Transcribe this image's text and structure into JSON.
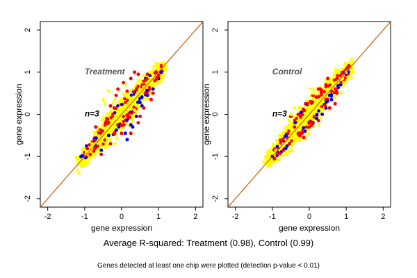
{
  "chart_data": [
    {
      "type": "scatter",
      "title": "Treatment",
      "annotation": "n=3",
      "xlabel": "gene expression",
      "ylabel": "gene expression",
      "xlim": [
        -2.2,
        2.2
      ],
      "ylim": [
        -2.2,
        2.2
      ],
      "xticks": [
        -2,
        -1,
        0,
        1,
        2
      ],
      "yticks": [
        -2,
        -1,
        0,
        1,
        2
      ],
      "reference_line": {
        "slope": 1,
        "intercept": 0,
        "color": "#cc5500"
      },
      "grid": false,
      "series": [
        {
          "color": "#0000ff",
          "points": [
            [
              -1.05,
              -0.98
            ],
            [
              -0.95,
              -0.75
            ],
            [
              -0.7,
              -0.75
            ],
            [
              -0.35,
              -0.5
            ],
            [
              0.1,
              -0.45
            ],
            [
              0.15,
              -0.6
            ],
            [
              0.25,
              -0.25
            ],
            [
              0.4,
              -0.05
            ],
            [
              0.55,
              0.2
            ],
            [
              0.7,
              0.45
            ],
            [
              0.85,
              0.6
            ],
            [
              1.0,
              0.85
            ],
            [
              -1.1,
              -1.0
            ],
            [
              0.3,
              -0.3
            ],
            [
              -0.55,
              -0.85
            ],
            [
              0.65,
              0.85
            ]
          ]
        },
        {
          "color": "#ff0000",
          "points": [
            [
              -0.85,
              -0.95
            ],
            [
              -0.55,
              -0.95
            ],
            [
              -0.3,
              -0.7
            ],
            [
              -0.4,
              -0.1
            ],
            [
              -0.2,
              0.15
            ],
            [
              -0.1,
              0.6
            ],
            [
              0.05,
              0.75
            ],
            [
              0.25,
              0.85
            ],
            [
              0.45,
              0.95
            ],
            [
              0.55,
              0.65
            ],
            [
              0.6,
              0.15
            ],
            [
              0.45,
              -0.2
            ],
            [
              0.25,
              -0.45
            ],
            [
              0.0,
              -0.45
            ],
            [
              -0.1,
              -0.25
            ],
            [
              0.15,
              0.55
            ],
            [
              0.8,
              0.35
            ],
            [
              0.85,
              0.5
            ],
            [
              -0.7,
              -0.3
            ],
            [
              0.05,
              -0.05
            ],
            [
              -0.15,
              0.45
            ],
            [
              0.35,
              1.0
            ],
            [
              -0.3,
              0.2
            ],
            [
              0.7,
              0.95
            ],
            [
              0.5,
              -0.05
            ],
            [
              0.9,
              0.8
            ],
            [
              0.2,
              0.2
            ],
            [
              -0.6,
              -0.55
            ]
          ]
        },
        {
          "color": "#ffff00",
          "points": [
            [
              -1.1,
              -1.1
            ],
            [
              -0.95,
              -0.9
            ],
            [
              -0.8,
              -0.7
            ],
            [
              -0.6,
              -0.55
            ],
            [
              -0.4,
              -0.35
            ],
            [
              -0.2,
              -0.15
            ],
            [
              0.0,
              0.0
            ],
            [
              0.2,
              0.2
            ],
            [
              0.4,
              0.45
            ],
            [
              0.6,
              0.65
            ],
            [
              0.8,
              0.85
            ],
            [
              1.0,
              1.05
            ],
            [
              1.15,
              1.15
            ],
            [
              -0.35,
              0.55
            ],
            [
              -0.5,
              0.35
            ],
            [
              -0.45,
              0.25
            ],
            [
              0.1,
              0.7
            ],
            [
              -0.7,
              -0.45
            ],
            [
              0.35,
              0.1
            ]
          ]
        }
      ]
    },
    {
      "type": "scatter",
      "title": "Control",
      "annotation": "n=3",
      "xlabel": "gene expression",
      "ylabel": "gene expression",
      "xlim": [
        -2.2,
        2.2
      ],
      "ylim": [
        -2.2,
        2.2
      ],
      "xticks": [
        -2,
        -1,
        0,
        1,
        2
      ],
      "yticks": [
        -2,
        -1,
        0,
        1,
        2
      ],
      "reference_line": {
        "slope": 1,
        "intercept": 0,
        "color": "#cc5500"
      },
      "grid": false,
      "series": [
        {
          "color": "#0000ff",
          "points": [
            [
              -1.0,
              -1.0
            ],
            [
              -0.85,
              -0.9
            ],
            [
              -0.7,
              -0.65
            ],
            [
              0.1,
              -0.2
            ],
            [
              0.2,
              -0.1
            ],
            [
              0.35,
              0.0
            ],
            [
              0.45,
              0.15
            ],
            [
              0.6,
              0.35
            ],
            [
              0.85,
              0.7
            ],
            [
              1.0,
              0.95
            ],
            [
              -0.6,
              -0.75
            ],
            [
              0.55,
              0.45
            ]
          ]
        },
        {
          "color": "#ff0000",
          "points": [
            [
              -0.85,
              -0.8
            ],
            [
              -0.6,
              -0.55
            ],
            [
              -0.4,
              -0.3
            ],
            [
              -0.3,
              0.0
            ],
            [
              -0.1,
              0.25
            ],
            [
              0.1,
              0.45
            ],
            [
              0.25,
              0.6
            ],
            [
              0.45,
              0.7
            ],
            [
              0.6,
              0.55
            ],
            [
              0.45,
              0.35
            ],
            [
              0.7,
              0.25
            ],
            [
              0.25,
              -0.15
            ],
            [
              0.0,
              -0.3
            ],
            [
              -0.15,
              -0.55
            ],
            [
              0.3,
              0.6
            ],
            [
              -0.5,
              -0.05
            ],
            [
              0.55,
              0.15
            ],
            [
              0.75,
              0.5
            ],
            [
              -0.3,
              -0.45
            ],
            [
              0.5,
              0.85
            ]
          ]
        },
        {
          "color": "#ffff00",
          "points": [
            [
              -1.1,
              -1.1
            ],
            [
              -0.9,
              -0.85
            ],
            [
              -0.7,
              -0.7
            ],
            [
              -0.5,
              -0.45
            ],
            [
              -0.3,
              -0.3
            ],
            [
              -0.1,
              -0.05
            ],
            [
              0.1,
              0.1
            ],
            [
              0.3,
              0.3
            ],
            [
              0.5,
              0.55
            ],
            [
              0.7,
              0.7
            ],
            [
              0.9,
              0.85
            ],
            [
              1.0,
              1.0
            ],
            [
              -0.8,
              -0.5
            ],
            [
              -0.5,
              0.0
            ],
            [
              -0.4,
              0.15
            ],
            [
              -0.55,
              -0.15
            ],
            [
              0.1,
              0.5
            ],
            [
              0.25,
              -0.25
            ]
          ]
        }
      ]
    }
  ],
  "captions": {
    "summary": "Average R-squared: Treatment (0.98), Control (0.99)",
    "footnote": "Genes detected at least one chip were plotted (detection p-value < 0.01)"
  }
}
